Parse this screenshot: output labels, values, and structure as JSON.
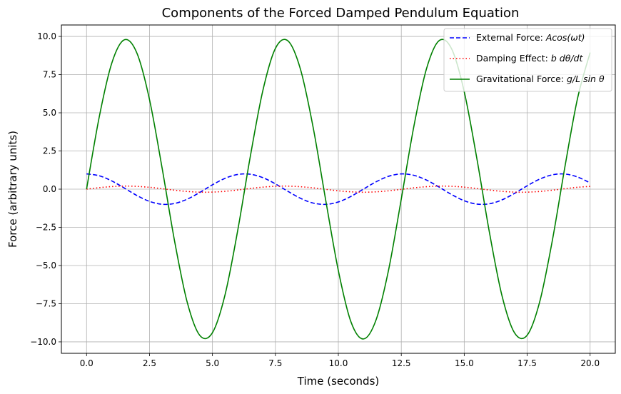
{
  "chart_data": {
    "type": "line",
    "title": "Components of the Forced Damped Pendulum Equation",
    "xlabel": "Time (seconds)",
    "ylabel": "Force (arbitrary units)",
    "xlim": [
      -1.0,
      21.0
    ],
    "ylim": [
      -10.75,
      10.75
    ],
    "xticks": [
      0.0,
      2.5,
      5.0,
      7.5,
      10.0,
      12.5,
      15.0,
      17.5,
      20.0
    ],
    "xtick_labels": [
      "0.0",
      "2.5",
      "5.0",
      "7.5",
      "10.0",
      "12.5",
      "15.0",
      "17.5",
      "20.0"
    ],
    "yticks": [
      -10.0,
      -7.5,
      -5.0,
      -2.5,
      0.0,
      2.5,
      5.0,
      7.5,
      10.0
    ],
    "ytick_labels": [
      "−10.0",
      "−7.5",
      "−5.0",
      "−2.5",
      "0.0",
      "2.5",
      "5.0",
      "7.5",
      "10.0"
    ],
    "grid": true,
    "legend_position": "top-right",
    "series": [
      {
        "name": "External Force: Acos(ωt)",
        "legend_prefix": "External Force: ",
        "legend_math": "Acos(ωt)",
        "color": "#0000ff",
        "style": "dashed",
        "x": [
          0,
          0.5,
          1,
          1.5,
          2,
          2.5,
          3,
          3.5,
          4,
          4.5,
          5,
          5.5,
          6,
          6.5,
          7,
          7.5,
          8,
          8.5,
          9,
          9.5,
          10,
          10.5,
          11,
          11.5,
          12,
          12.5,
          13,
          13.5,
          14,
          14.5,
          15,
          15.5,
          16,
          16.5,
          17,
          17.5,
          18,
          18.5,
          19,
          19.5,
          20
        ],
        "y": [
          1.0,
          0.878,
          0.54,
          0.071,
          -0.416,
          -0.801,
          -0.99,
          -0.936,
          -0.654,
          -0.211,
          0.284,
          0.709,
          0.96,
          0.977,
          0.754,
          0.347,
          -0.146,
          -0.602,
          -0.911,
          -0.997,
          -0.839,
          -0.476,
          0.004,
          0.483,
          0.844,
          0.998,
          0.907,
          0.596,
          0.137,
          -0.355,
          -0.76,
          -0.978,
          -0.958,
          -0.703,
          -0.275,
          0.219,
          0.66,
          0.939,
          0.989,
          0.795,
          0.408
        ]
      },
      {
        "name": "Damping Effect: b dθ/dt",
        "legend_prefix": "Damping Effect: ",
        "legend_math": "b dθ/dt",
        "color": "#ff0000",
        "style": "dotted",
        "x": [
          0,
          0.5,
          1,
          1.5,
          2,
          2.5,
          3,
          3.5,
          4,
          4.5,
          5,
          5.5,
          6,
          6.5,
          7,
          7.5,
          8,
          8.5,
          9,
          9.5,
          10,
          10.5,
          11,
          11.5,
          12,
          12.5,
          13,
          13.5,
          14,
          14.5,
          15,
          15.5,
          16,
          16.5,
          17,
          17.5,
          18,
          18.5,
          19,
          19.5,
          20
        ],
        "y": [
          0.0,
          0.096,
          0.168,
          0.2,
          0.182,
          0.12,
          0.028,
          -0.07,
          -0.151,
          -0.196,
          -0.192,
          -0.141,
          -0.056,
          0.043,
          0.131,
          0.188,
          0.198,
          0.159,
          0.082,
          -0.015,
          -0.109,
          -0.176,
          -0.2,
          -0.175,
          -0.107,
          -0.013,
          0.084,
          0.161,
          0.198,
          0.187,
          0.13,
          0.042,
          -0.058,
          -0.143,
          -0.193,
          -0.196,
          -0.15,
          -0.069,
          0.03,
          0.121,
          0.183
        ]
      },
      {
        "name": "Gravitational Force: g/L sin θ",
        "legend_prefix": "Gravitational Force: ",
        "legend_math": "g/L sin θ",
        "color": "#008000",
        "style": "solid",
        "x": [
          0,
          0.5,
          1,
          1.5,
          2,
          2.5,
          3,
          3.5,
          4,
          4.5,
          5,
          5.5,
          6,
          6.5,
          7,
          7.5,
          8,
          8.5,
          9,
          9.5,
          10,
          10.5,
          11,
          11.5,
          12,
          12.5,
          13,
          13.5,
          14,
          14.5,
          15,
          15.5,
          16,
          16.5,
          17,
          17.5,
          18,
          18.5,
          19,
          19.5,
          20
        ],
        "y": [
          0.0,
          4.698,
          8.245,
          9.778,
          8.906,
          5.866,
          1.383,
          -3.438,
          -7.418,
          -9.583,
          -9.397,
          -6.919,
          -2.738,
          2.107,
          6.441,
          9.215,
          9.708,
          7.825,
          4.037,
          -0.735,
          -5.333,
          -8.684,
          -9.81,
          -8.553,
          -5.255,
          -0.649,
          4.114,
          7.875,
          9.721,
          9.186,
          6.383,
          2.02,
          -2.822,
          -6.98,
          -9.417,
          -9.563,
          -7.363,
          -3.36,
          1.469,
          5.937,
          8.944
        ]
      }
    ]
  }
}
